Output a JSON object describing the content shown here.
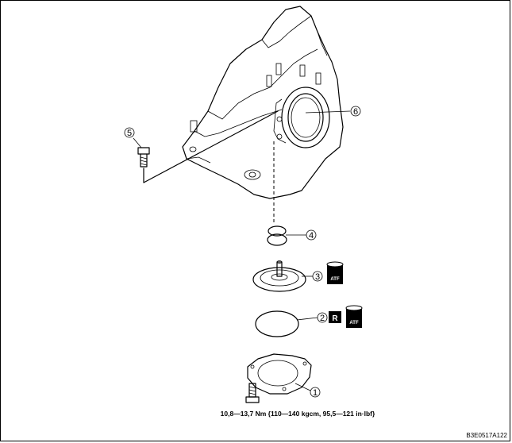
{
  "callouts": [
    {
      "id": "1",
      "label": "1"
    },
    {
      "id": "2",
      "label": "2"
    },
    {
      "id": "3",
      "label": "3"
    },
    {
      "id": "4",
      "label": "4"
    },
    {
      "id": "5",
      "label": "5"
    },
    {
      "id": "6",
      "label": "6"
    }
  ],
  "badges": {
    "atf": "ATF",
    "replace": "R"
  },
  "torque_spec": "10,8—13,7 Nm {110—140 kgcm, 95,5—121 in·lbf}",
  "figure_code": "B3E0517A122",
  "colors": {
    "line": "#000000",
    "background": "#ffffff",
    "badge": "#000000"
  }
}
